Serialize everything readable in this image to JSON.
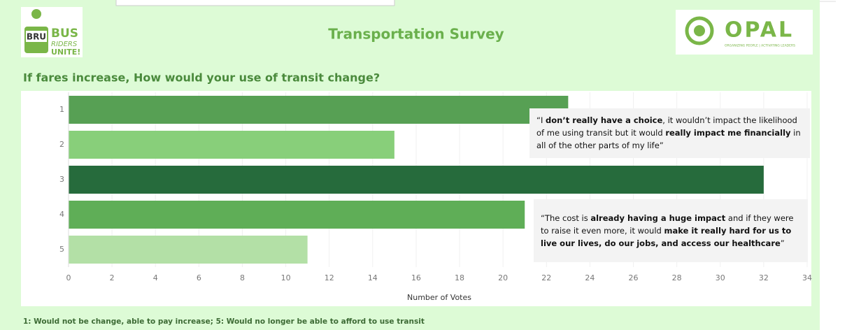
{
  "logos": {
    "left": {
      "badge": "BRU",
      "line1": "BUS",
      "line2": "RIDERS",
      "line3": "UNITE!"
    },
    "right": {
      "name": "OPAL",
      "tagline": "ORGANIZING PEOPLE | ACTIVATING LEADERS"
    }
  },
  "chart_data": {
    "type": "hbar",
    "title": "Transportation Survey",
    "subtitle": "If fares increase, How would your use of transit change?",
    "categories": [
      "1",
      "2",
      "3",
      "4",
      "5"
    ],
    "values": [
      23,
      15,
      32,
      21,
      11
    ],
    "colors": [
      "#57a054",
      "#88cf7a",
      "#266b3c",
      "#5fae57",
      "#b3e0a6"
    ],
    "xlim": [
      0,
      34
    ],
    "xticks": [
      0,
      2,
      4,
      6,
      8,
      10,
      12,
      14,
      16,
      18,
      20,
      22,
      24,
      26,
      28,
      30,
      32,
      34
    ],
    "xlabel": "Number of Votes",
    "grid": true,
    "annotations": [
      {
        "segments": [
          {
            "text": "“I ",
            "bold": false
          },
          {
            "text": "don’t really have a choice",
            "bold": true
          },
          {
            "text": ", it wouldn’t impact the likelihood of me using transit but it would ",
            "bold": false
          },
          {
            "text": "really impact me financially",
            "bold": true
          },
          {
            "text": " in all of the other parts of my life”",
            "bold": false
          }
        ]
      },
      {
        "segments": [
          {
            "text": "“The cost is ",
            "bold": false
          },
          {
            "text": "already having a huge impact",
            "bold": true
          },
          {
            "text": " and if they were to raise it even more, it would ",
            "bold": false
          },
          {
            "text": "make it really hard for us to live our lives, do our jobs, and access our healthcare",
            "bold": true
          },
          {
            "text": "”",
            "bold": false
          }
        ]
      }
    ],
    "footnote": "1: Would not be change, able to pay increase; 5: Would no longer be able to afford to use transit"
  }
}
